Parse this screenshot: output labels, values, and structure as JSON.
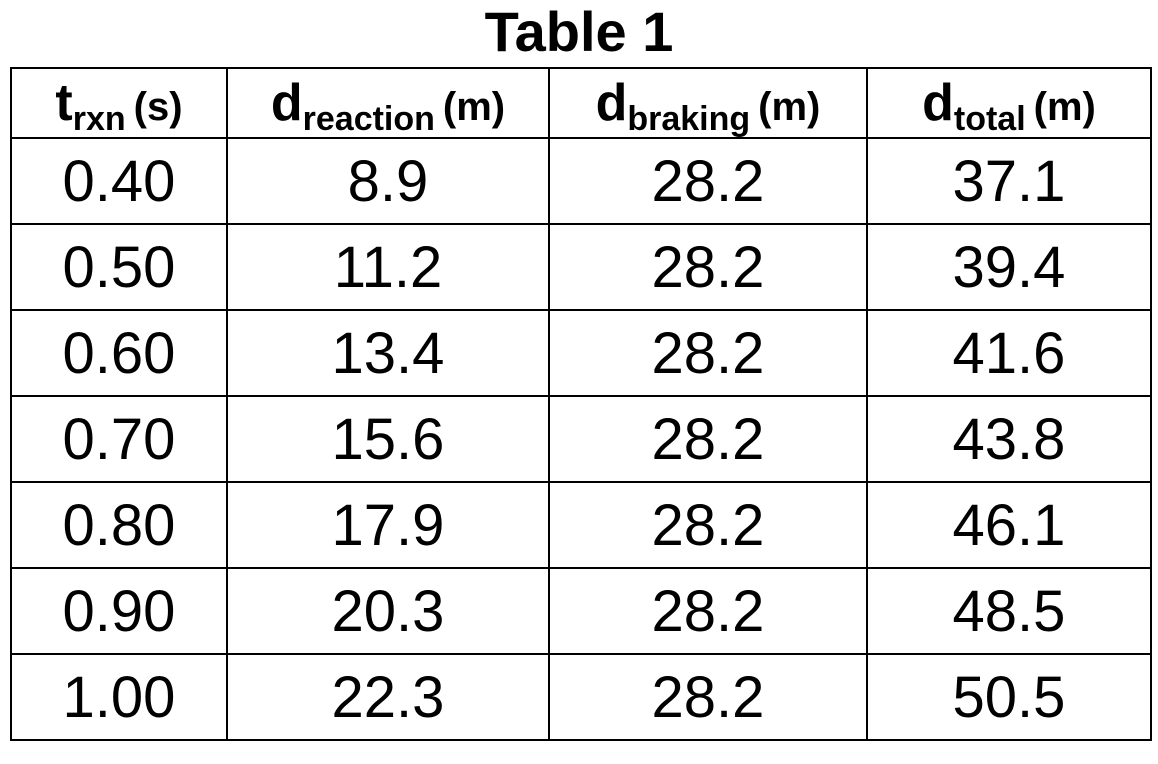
{
  "title": "Table 1",
  "headers": [
    {
      "symbol": "t",
      "subscript": "rxn",
      "unit": "(s)"
    },
    {
      "symbol": "d",
      "subscript": "reaction",
      "unit": "(m)"
    },
    {
      "symbol": "d",
      "subscript": "braking",
      "unit": "(m)"
    },
    {
      "symbol": "d",
      "subscript": "total",
      "unit": "(m)"
    }
  ],
  "rows": [
    [
      "0.40",
      "8.9",
      "28.2",
      "37.1"
    ],
    [
      "0.50",
      "11.2",
      "28.2",
      "39.4"
    ],
    [
      "0.60",
      "13.4",
      "28.2",
      "41.6"
    ],
    [
      "0.70",
      "15.6",
      "28.2",
      "43.8"
    ],
    [
      "0.80",
      "17.9",
      "28.2",
      "46.1"
    ],
    [
      "0.90",
      "20.3",
      "28.2",
      "48.5"
    ],
    [
      "1.00",
      "22.3",
      "28.2",
      "50.5"
    ]
  ]
}
